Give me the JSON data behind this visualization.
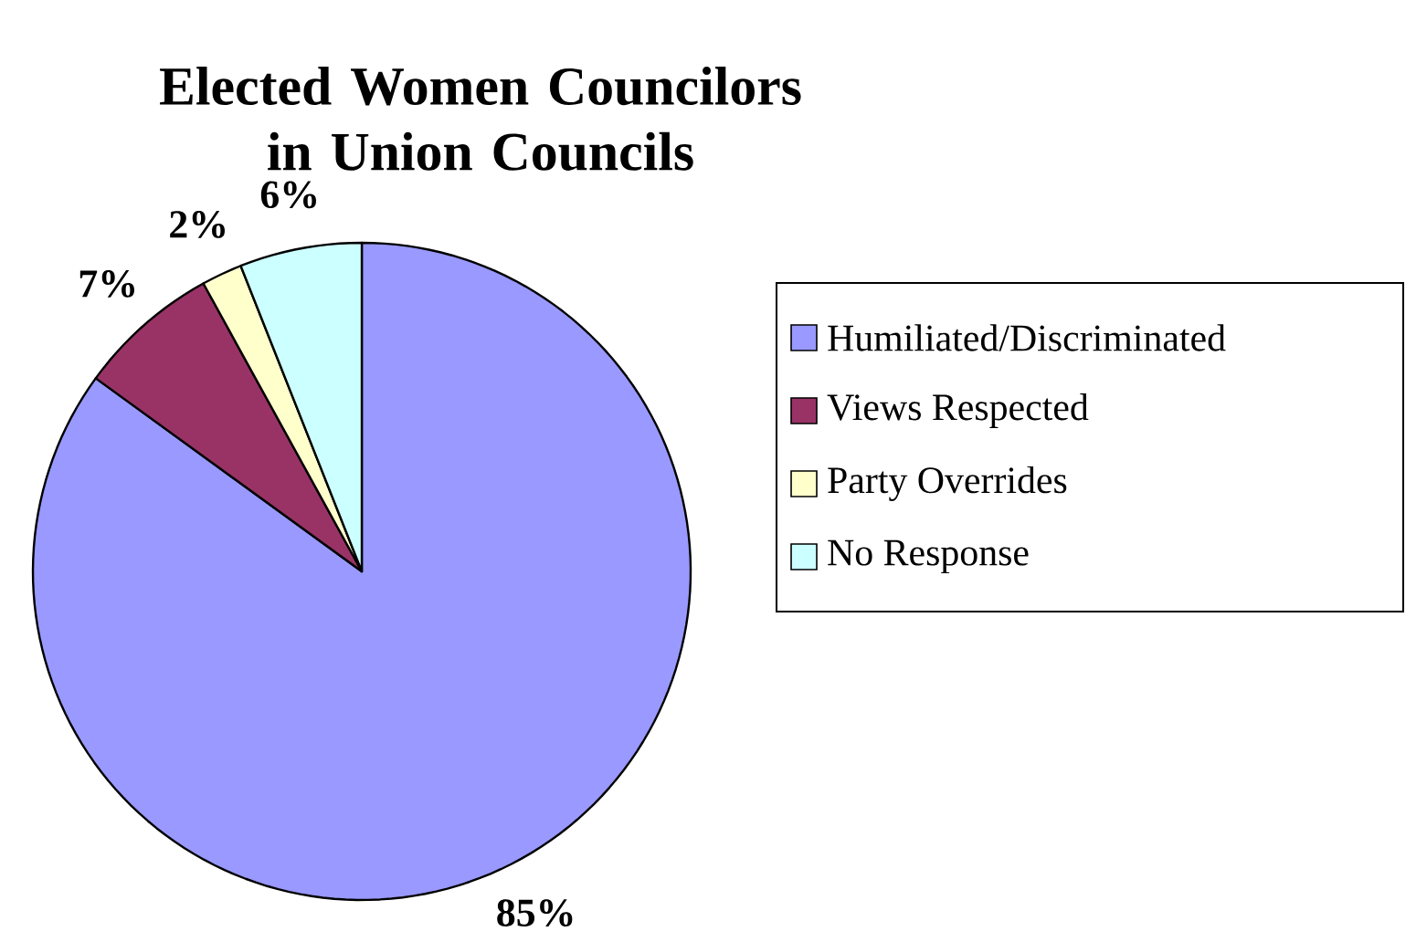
{
  "chart_data": {
    "type": "pie",
    "title": "Elected Women Councilors in Union Councils",
    "categories": [
      "Humiliated/Discriminated",
      "Views Respected",
      "Party Overrides",
      "No Response"
    ],
    "values": [
      85,
      7,
      2,
      6
    ],
    "value_labels": [
      "85%",
      "7%",
      "2%",
      "6%"
    ],
    "colors": [
      "#9999ff",
      "#993366",
      "#ffffcc",
      "#ccffff"
    ],
    "legend": "right"
  }
}
